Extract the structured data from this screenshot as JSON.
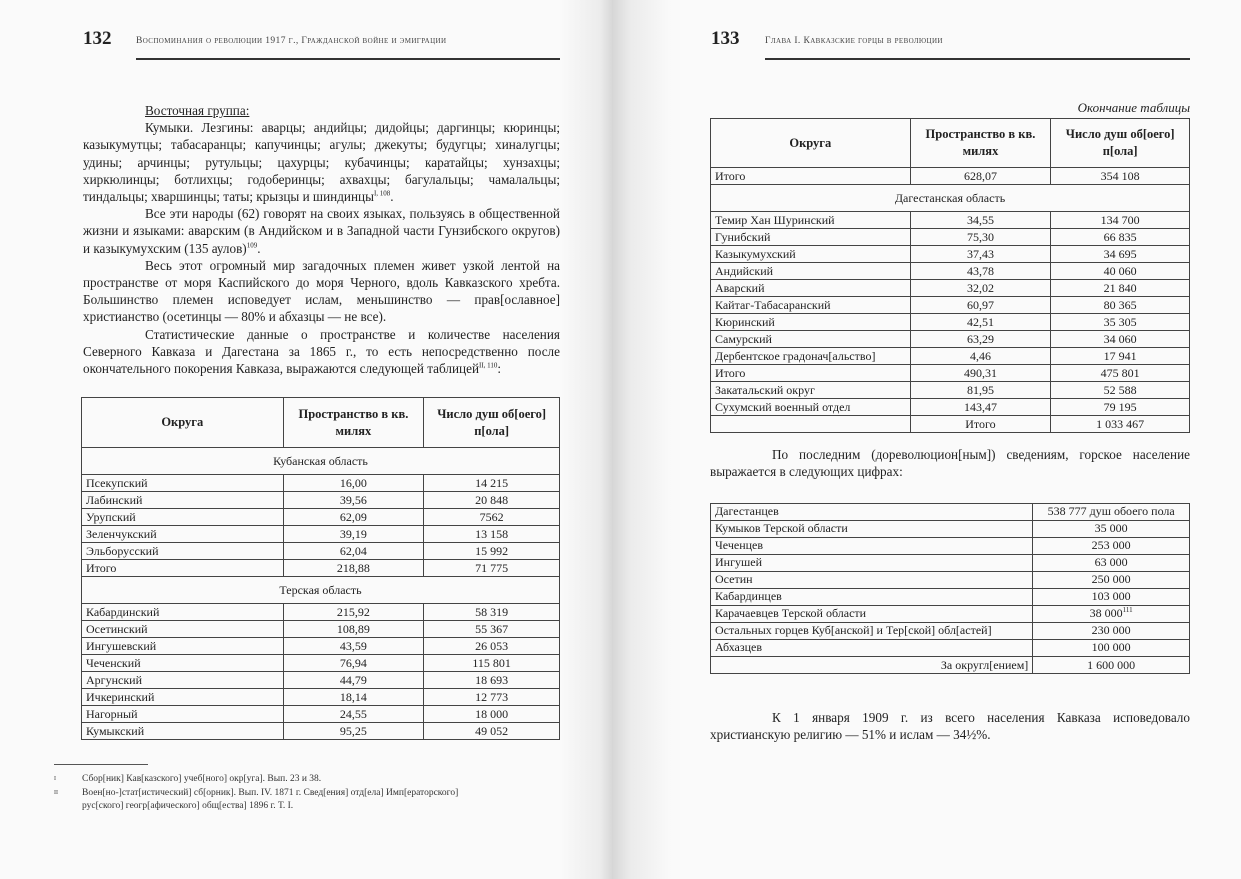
{
  "left_page": {
    "page_number": "132",
    "running_head": "Воспоминания о революции 1917 г., Гражданской войне и эмиграции",
    "heading": "Восточная группа:",
    "paragraphs": [
      {
        "text": "Кумыки. Лезгины: аварцы; андийцы; дидойцы; даргинцы; кюринцы; казыкумутцы; табасаранцы; капучинцы; агулы; джекуты; будугцы; хиналугцы; удины; арчинцы; рутульцы; цахурцы; кубачинцы; каратайцы; хунзахцы; хиркюлинцы; ботлихцы; годоберинцы; ахвахцы; багулальцы; чамалальцы; тиндальцы; хваршинцы; таты; крызцы и шиндинцы",
        "note": "I, 108",
        "end": "."
      },
      {
        "text": "Все эти народы (62) говорят на своих языках, пользуясь в общественной жизни и языками: аварским (в Андийском и в Западной части Гунзибского округов) и казыкумухским (135 аулов)",
        "note": "109",
        "end": "."
      },
      {
        "text": "Весь этот огромный мир загадочных племен живет узкой лентой на пространстве от моря Каспийского до моря Черного, вдоль Кавказского хребта. Большинство племен исповедует ислам, меньшинство — прав[ославное] христианство (осетинцы — 80% и абхазцы — не все).",
        "note": "",
        "end": ""
      },
      {
        "text": "Статистические данные о пространстве и количестве населения Северного Кавказа и Дагестана за 1865 г., то есть непосредственно после окончательного покорения Кавказа, выражаются следующей таблицей",
        "note": "II, 110",
        "end": ":"
      }
    ],
    "table": {
      "headers": [
        "Округа",
        "Пространство в кв. милях",
        "Число душ об[оего] п[ола]"
      ],
      "sections": [
        {
          "title": "Кубанская область",
          "rows": [
            [
              "Псекупский",
              "16,00",
              "14 215"
            ],
            [
              "Лабинский",
              "39,56",
              "20 848"
            ],
            [
              "Урупский",
              "62,09",
              "7562"
            ],
            [
              "Зеленчукский",
              "39,19",
              "13 158"
            ],
            [
              "Эльборусский",
              "62,04",
              "15 992"
            ],
            [
              "Итого",
              "218,88",
              "71 775"
            ]
          ]
        },
        {
          "title": "Терская область",
          "rows": [
            [
              "Кабардинский",
              "215,92",
              "58 319"
            ],
            [
              "Осетинский",
              "108,89",
              "55 367"
            ],
            [
              "Ингушевский",
              "43,59",
              "26 053"
            ],
            [
              "Чеченский",
              "76,94",
              "115 801"
            ],
            [
              "Аргунский",
              "44,79",
              "18 693"
            ],
            [
              "Ичкеринский",
              "18,14",
              "12 773"
            ],
            [
              "Нагорный",
              "24,55",
              "18 000"
            ],
            [
              "Кумыкский",
              "95,25",
              "49 052"
            ]
          ]
        }
      ]
    },
    "footnotes": [
      {
        "mark": "I",
        "text": "Сбор[ник] Кав[казского] учеб[ного] окр[уга]. Вып. 23 и 38."
      },
      {
        "mark": "II",
        "text": "Воен[но-]стат[истический] сб[орник]. Вып. IV. 1871 г. Свед[ения] отд[ела] Имп[ераторского] рус[ского] геогр[афического] общ[ества] 1896 г. Т. I."
      }
    ]
  },
  "right_page": {
    "page_number": "133",
    "running_head": "Глава I. Кавказские горцы в революции",
    "table_caption": "Окончание таблицы",
    "table": {
      "headers": [
        "Округа",
        "Пространство в кв. милях",
        "Число душ об[оего] п[ола]"
      ],
      "top_total": [
        "Итого",
        "628,07",
        "354 108"
      ],
      "section_title": "Дагестанская область",
      "rows": [
        [
          "Темир Хан Шуринский",
          "34,55",
          "134 700"
        ],
        [
          "Гунибский",
          "75,30",
          "66 835"
        ],
        [
          "Казыкумухский",
          "37,43",
          "34 695"
        ],
        [
          "Андийский",
          "43,78",
          "40 060"
        ],
        [
          "Аварский",
          "32,02",
          "21 840"
        ],
        [
          "Кайтаг-Табасаранский",
          "60,97",
          "80 365"
        ],
        [
          "Кюринский",
          "42,51",
          "35 305"
        ],
        [
          "Самурский",
          "63,29",
          "34 060"
        ],
        [
          "Дербентское градонач[альство]",
          "4,46",
          "17 941"
        ],
        [
          "Итого",
          "490,31",
          "475 801"
        ],
        [
          "Закатальский округ",
          "81,95",
          "52 588"
        ],
        [
          "Сухумский военный отдел",
          "143,47",
          "79 195"
        ],
        [
          "",
          "Итого",
          "1 033 467"
        ]
      ]
    },
    "paragraph1": "По последним (дореволюцион[ным]) сведениям, горское население выражается в следующих цифрах:",
    "population_table": {
      "rows": [
        [
          "Дагестанцев",
          "538 777 душ обоего пола",
          ""
        ],
        [
          "Кумыков Терской области",
          "35 000",
          ""
        ],
        [
          "Чеченцев",
          "253 000",
          ""
        ],
        [
          "Ингушей",
          "63 000",
          ""
        ],
        [
          "Осетин",
          "250 000",
          ""
        ],
        [
          "Кабардинцев",
          "103 000",
          ""
        ],
        [
          "Карачаевцев Терской области",
          "38 000",
          "111"
        ],
        [
          "Остальных горцев Куб[анской] и Тер[ской] обл[астей]",
          "230 000",
          ""
        ],
        [
          "Абхазцев",
          "100 000",
          ""
        ]
      ],
      "total_label": "За округл[ением]",
      "total_value": "1 600 000"
    },
    "paragraph2": "К 1 января 1909 г. из всего населения Кавказа исповедовало христианскую религию — 51% и ислам — 34½%."
  }
}
